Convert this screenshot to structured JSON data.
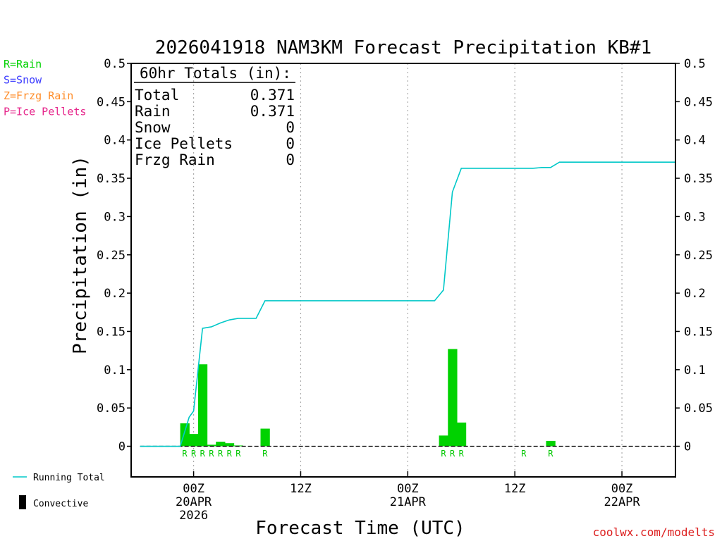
{
  "chart_data": {
    "type": "bar",
    "title": "2026041918 NAM3KM Forecast Precipitation KB#1",
    "xlabel": "Forecast Time (UTC)",
    "ylabel": "Precipitation (in)",
    "ylim": [
      -0.04,
      0.5
    ],
    "yticks": [
      0,
      0.05,
      0.1,
      0.15,
      0.2,
      0.25,
      0.3,
      0.35,
      0.4,
      0.45,
      0.5
    ],
    "yticks_labels": [
      "0",
      "0.05",
      "0.1",
      "0.15",
      "0.2",
      "0.25",
      "0.3",
      "0.35",
      "0.4",
      "0.45",
      "0.5"
    ],
    "x_unit": "hours after 2026-04-19 18Z",
    "xlim": [
      -1,
      60
    ],
    "xticks": [
      {
        "x": 6,
        "lines": [
          "00Z",
          "20APR",
          "2026"
        ]
      },
      {
        "x": 18,
        "lines": [
          "12Z"
        ]
      },
      {
        "x": 30,
        "lines": [
          "00Z",
          "21APR"
        ]
      },
      {
        "x": 42,
        "lines": [
          "12Z"
        ]
      },
      {
        "x": 54,
        "lines": [
          "00Z",
          "22APR"
        ]
      }
    ],
    "bar_width_hours": 1,
    "series": [
      {
        "name": "Rain",
        "color": "#00d200",
        "bars": [
          {
            "x": 5,
            "value": 0.03,
            "type": "R"
          },
          {
            "x": 6,
            "value": 0.016,
            "type": "R"
          },
          {
            "x": 7,
            "value": 0.107,
            "type": "R"
          },
          {
            "x": 8,
            "value": 0.002,
            "type": "R"
          },
          {
            "x": 9,
            "value": 0.006,
            "type": "R"
          },
          {
            "x": 10,
            "value": 0.004,
            "type": "R"
          },
          {
            "x": 11,
            "value": 0.001,
            "type": "R"
          },
          {
            "x": 14,
            "value": 0.023,
            "type": "R"
          },
          {
            "x": 34,
            "value": 0.014,
            "type": "R"
          },
          {
            "x": 35,
            "value": 0.127,
            "type": "R"
          },
          {
            "x": 36,
            "value": 0.031,
            "type": "R"
          },
          {
            "x": 43,
            "value": 0.0,
            "type": "R"
          },
          {
            "x": 46,
            "value": 0.007,
            "type": "R"
          }
        ]
      },
      {
        "name": "Running Total",
        "color": "#00c8c8",
        "x": [
          0,
          3,
          4.5,
          5.5,
          6,
          7,
          8,
          9,
          10,
          11,
          12,
          13,
          14,
          15,
          16,
          17,
          18,
          24,
          28,
          32,
          33,
          34,
          35,
          36,
          40,
          44,
          45,
          46,
          47,
          50,
          55,
          60
        ],
        "values": [
          0,
          0,
          0,
          0.038,
          0.046,
          0.154,
          0.156,
          0.161,
          0.165,
          0.167,
          0.167,
          0.167,
          0.19,
          0.19,
          0.19,
          0.19,
          0.19,
          0.19,
          0.19,
          0.19,
          0.19,
          0.204,
          0.332,
          0.363,
          0.363,
          0.363,
          0.364,
          0.364,
          0.371,
          0.371,
          0.371,
          0.371
        ]
      }
    ],
    "zero_line": "dashed",
    "grid": "vertical dotted at tick marks",
    "precip_type_legend": [
      {
        "text": "R=Rain",
        "color": "#00d200"
      },
      {
        "text": "S=Snow",
        "color": "#3c3cff"
      },
      {
        "text": "Z=Frzg Rain",
        "color": "#ff8c28"
      },
      {
        "text": "P=Ice Pellets",
        "color": "#e6288c"
      }
    ],
    "bottom_legend": [
      {
        "text": "Running Total",
        "symbol": "line",
        "color": "#00c8c8"
      },
      {
        "text": "Convective",
        "symbol": "bar",
        "color": "#000000"
      }
    ],
    "totals_box": {
      "header": "60hr Totals (in):",
      "rows": [
        {
          "label": "Total",
          "value": "0.371"
        },
        {
          "label": "Rain",
          "value": "0.371"
        },
        {
          "label": "Snow",
          "value": "0"
        },
        {
          "label": "Ice Pellets",
          "value": "0"
        },
        {
          "label": "Frzg Rain",
          "value": "0"
        }
      ]
    },
    "credit": "coolwx.com/modelts"
  }
}
